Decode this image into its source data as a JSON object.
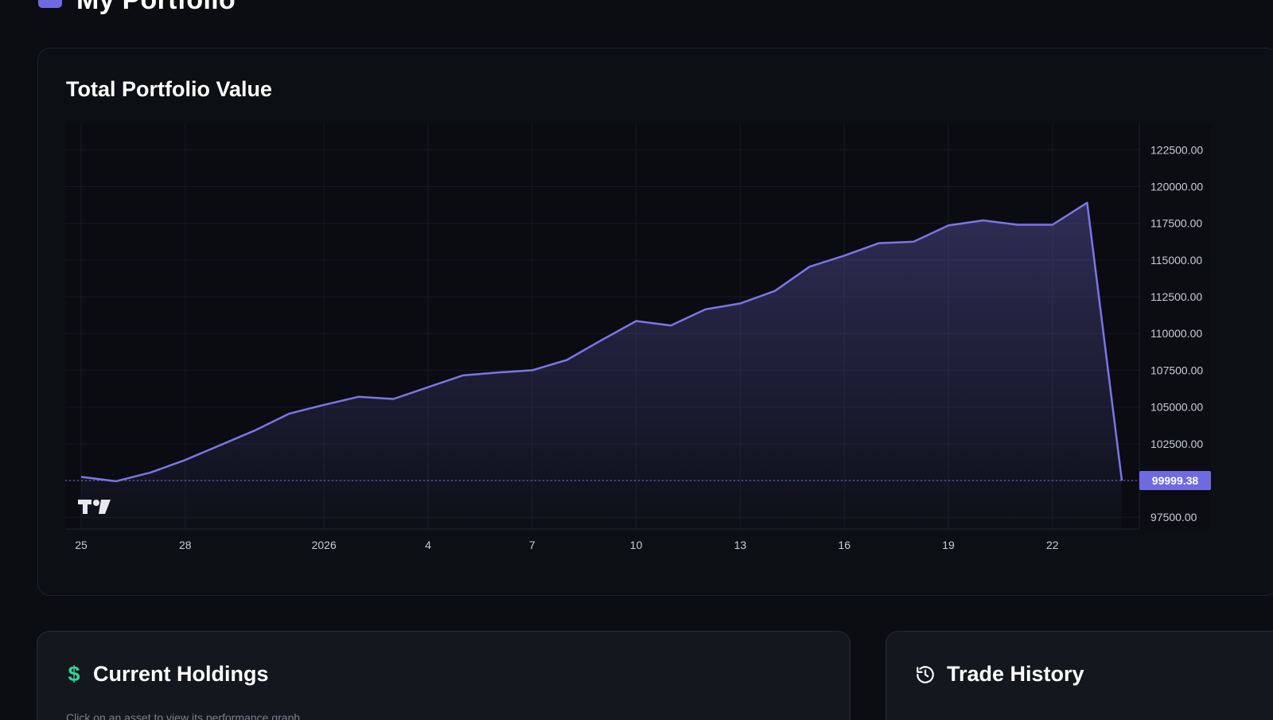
{
  "page": {
    "title": "My Portfolio",
    "title_icon": "portfolio-icon"
  },
  "chart_card": {
    "heading": "Total Portfolio Value",
    "logo": "tradingview-logo"
  },
  "chart_data": {
    "type": "area",
    "title": "Total Portfolio Value",
    "x": [
      "Dec 25",
      "Dec 26",
      "Dec 27",
      "Dec 28",
      "Dec 29",
      "Dec 30",
      "Dec 31",
      "Jan 1",
      "Jan 2",
      "Jan 3",
      "Jan 4",
      "Jan 5",
      "Jan 6",
      "Jan 7",
      "Jan 8",
      "Jan 9",
      "Jan 10",
      "Jan 11",
      "Jan 12",
      "Jan 13",
      "Jan 14",
      "Jan 15",
      "Jan 16",
      "Jan 17",
      "Jan 18",
      "Jan 19",
      "Jan 20",
      "Jan 21",
      "Jan 22",
      "Jan 23",
      "Jan 24"
    ],
    "series": [
      {
        "values": [
          100250,
          99950,
          100550,
          101400,
          102400,
          103400,
          104550,
          105150,
          105700,
          105550,
          106350,
          107150,
          107350,
          107500,
          108200,
          109550,
          110850,
          110550,
          111650,
          112050,
          112900,
          114550,
          115300,
          116150,
          116250,
          117350,
          117700,
          117400,
          117400,
          118900,
          99999.38
        ]
      }
    ],
    "x_tick_labels": [
      "25",
      "28",
      "2026",
      "4",
      "7",
      "10",
      "13",
      "16",
      "19",
      "22"
    ],
    "y_tick_labels": [
      "122500.00",
      "120000.00",
      "117500.00",
      "115000.00",
      "112500.00",
      "110000.00",
      "107500.00",
      "105000.00",
      "102500.00",
      "100000.00",
      "97500.00"
    ],
    "ylim": [
      96700,
      124300
    ],
    "last_value_label": "99999.38",
    "line_color": "#7b75e8",
    "grid": true,
    "y_axis_position": "right"
  },
  "holdings": {
    "title": "Current Holdings",
    "icon": "dollar-icon",
    "hint": "Click on an asset to view its performance graph"
  },
  "history": {
    "title": "Trade History",
    "icon": "history-icon"
  },
  "colors": {
    "background": "#0b0d12",
    "card": "#0c0f14",
    "accent": "#7b75e8",
    "price_badge": "#6f6ae0",
    "holdings_icon": "#34d399"
  }
}
